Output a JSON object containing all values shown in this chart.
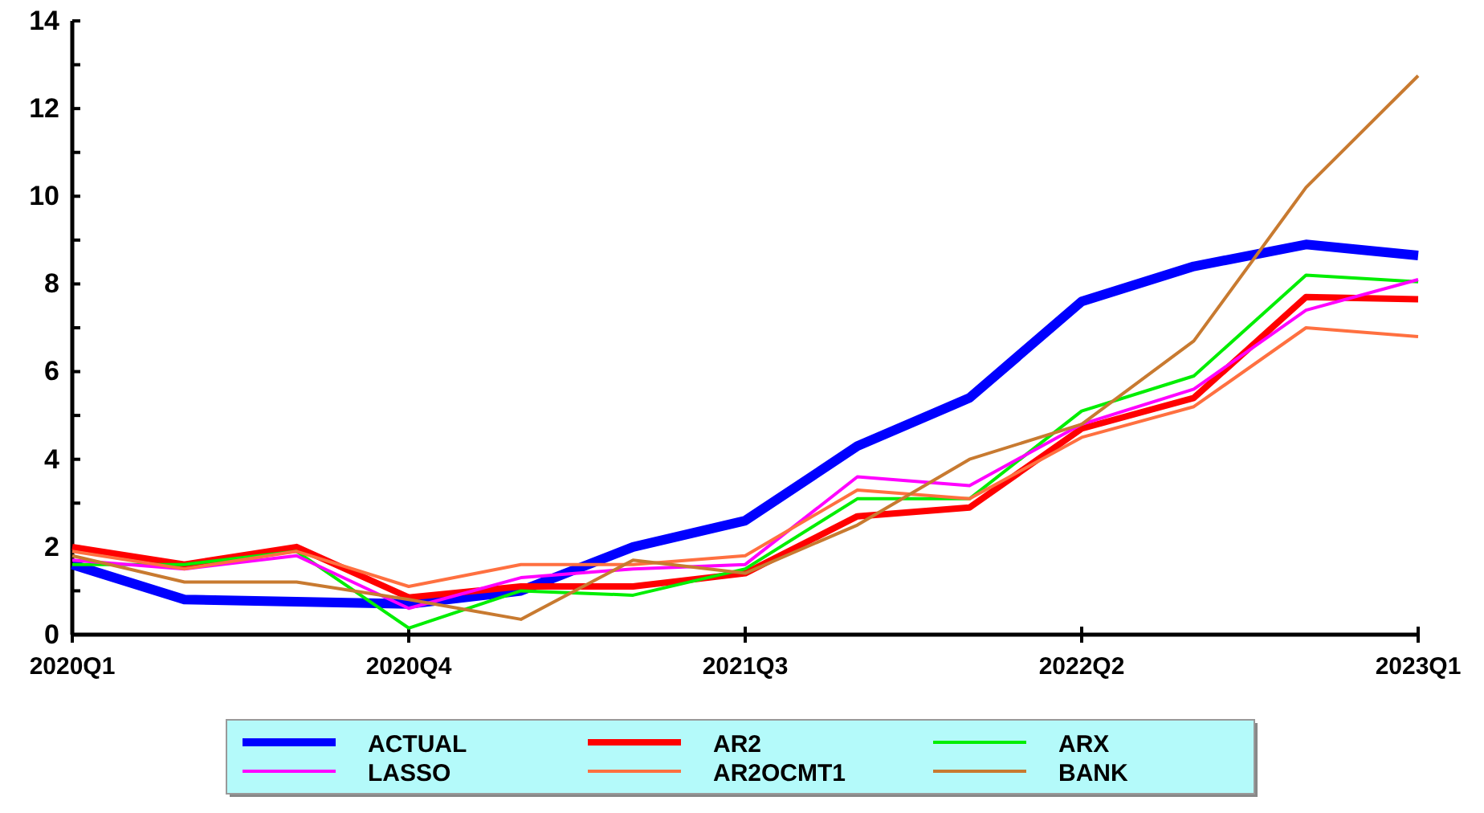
{
  "chart_data": {
    "type": "line",
    "categories": [
      "2020Q1",
      null,
      null,
      "2020Q4",
      null,
      null,
      "2021Q3",
      null,
      null,
      "2022Q2",
      null,
      null,
      "2023Q1"
    ],
    "ylim": [
      0,
      14
    ],
    "yticks": [
      0,
      {
        "value": 1,
        "label": null
      },
      2,
      {
        "value": 3,
        "label": null
      },
      4,
      {
        "value": 5,
        "label": null
      },
      6,
      {
        "value": 7,
        "label": null
      },
      8,
      {
        "value": 9,
        "label": null
      },
      10,
      {
        "value": 11,
        "label": null
      },
      12,
      {
        "value": 13,
        "label": null
      },
      14
    ],
    "grid": false,
    "legend": "bottom",
    "marker": "none",
    "line_style": "solid",
    "series": [
      {
        "name": "ACTUAL",
        "color": "#0000ff",
        "values": [
          1.6,
          0.8,
          0.75,
          0.7,
          1.0,
          2.0,
          2.6,
          4.3,
          5.4,
          7.6,
          8.4,
          8.9,
          8.65
        ]
      },
      {
        "name": "AR2",
        "color": "#ff0000",
        "values": [
          2.0,
          1.6,
          2.0,
          0.85,
          1.1,
          1.1,
          1.4,
          2.7,
          2.9,
          4.7,
          5.4,
          7.7,
          7.65
        ]
      },
      {
        "name": "ARX",
        "color": "#00ee00",
        "values": [
          1.6,
          1.6,
          1.9,
          0.15,
          1.0,
          0.9,
          1.5,
          3.1,
          3.1,
          5.1,
          5.9,
          8.2,
          8.05
        ]
      },
      {
        "name": "LASSO",
        "color": "#ff00ff",
        "values": [
          1.7,
          1.5,
          1.8,
          0.6,
          1.3,
          1.5,
          1.6,
          3.6,
          3.4,
          4.8,
          5.6,
          7.4,
          8.1
        ]
      },
      {
        "name": "AR2OCMT1",
        "color": "#ff7040",
        "values": [
          1.9,
          1.5,
          1.9,
          1.1,
          1.6,
          1.6,
          1.8,
          3.3,
          3.1,
          4.5,
          5.2,
          7.0,
          6.8
        ]
      },
      {
        "name": "BANK",
        "color": "#c87a30",
        "values": [
          1.8,
          1.2,
          1.2,
          0.8,
          0.35,
          1.7,
          1.4,
          2.5,
          4.0,
          4.8,
          6.7,
          10.2,
          12.75
        ]
      }
    ]
  }
}
